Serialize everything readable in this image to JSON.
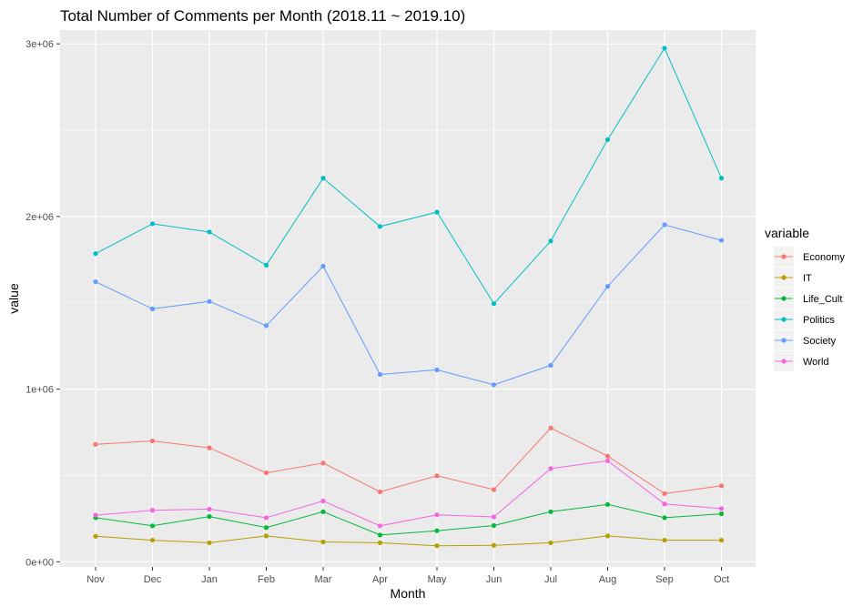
{
  "chart_data": {
    "type": "line",
    "title": "Total Number of Comments per Month (2018.11 ~ 2019.10)",
    "xlabel": "Month",
    "ylabel": "value",
    "categories": [
      "Nov",
      "Dec",
      "Jan",
      "Feb",
      "Mar",
      "Apr",
      "May",
      "Jun",
      "Jul",
      "Aug",
      "Sep",
      "Oct"
    ],
    "ylim": [
      -30000,
      3080000
    ],
    "yticks": [
      0,
      1000000,
      2000000,
      3000000
    ],
    "ytick_labels": [
      "0e+00",
      "1e+06",
      "2e+06",
      "3e+06"
    ],
    "grid": true,
    "legend": {
      "title": "variable",
      "position": "right"
    },
    "series": [
      {
        "name": "Economy",
        "color": "#F8766D",
        "values": [
          680000,
          700000,
          660000,
          515000,
          572000,
          405000,
          498000,
          418000,
          775000,
          612000,
          395000,
          440000
        ]
      },
      {
        "name": "IT",
        "color": "#B79F00",
        "values": [
          148000,
          125000,
          110000,
          150000,
          115000,
          110000,
          93000,
          95000,
          110000,
          150000,
          125000,
          125000
        ]
      },
      {
        "name": "Life_Cult",
        "color": "#00BA38",
        "values": [
          255000,
          208000,
          262000,
          198000,
          290000,
          155000,
          180000,
          210000,
          290000,
          332000,
          255000,
          278000
        ]
      },
      {
        "name": "Politics",
        "color": "#00BFC4",
        "values": [
          1785000,
          1958000,
          1910000,
          1718000,
          2222000,
          1942000,
          2025000,
          1495000,
          1858000,
          2445000,
          2975000,
          2222000
        ]
      },
      {
        "name": "Society",
        "color": "#619CFF",
        "values": [
          1622000,
          1465000,
          1508000,
          1368000,
          1712000,
          1085000,
          1112000,
          1025000,
          1138000,
          1595000,
          1952000,
          1862000
        ]
      },
      {
        "name": "World",
        "color": "#F564E3",
        "values": [
          270000,
          298000,
          305000,
          255000,
          352000,
          208000,
          272000,
          260000,
          540000,
          585000,
          335000,
          308000
        ]
      }
    ]
  }
}
